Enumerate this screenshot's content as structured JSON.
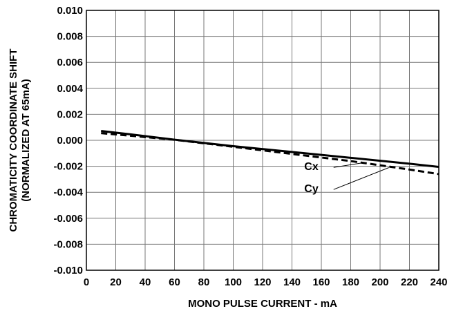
{
  "chart_data": {
    "type": "line",
    "title": "",
    "xlabel": "MONO PULSE CURRENT - mA",
    "ylabel_lines": [
      "CHROMATICITY COORDINATE SHIFT",
      "(NORMALIZED AT 65mA)"
    ],
    "xlim": [
      0,
      240
    ],
    "ylim": [
      -0.01,
      0.01
    ],
    "x_ticks": [
      0,
      20,
      40,
      60,
      80,
      100,
      120,
      140,
      160,
      180,
      200,
      220,
      240
    ],
    "x_tick_labels": [
      "0",
      "20",
      "40",
      "60",
      "80",
      "100",
      "120",
      "140",
      "160",
      "180",
      "200",
      "220",
      "240"
    ],
    "y_ticks": [
      0.01,
      0.008,
      0.006,
      0.004,
      0.002,
      0.0,
      -0.002,
      -0.004,
      -0.006,
      -0.008,
      -0.01
    ],
    "y_tick_labels": [
      "0.010",
      "0.008",
      "0.006",
      "0.004",
      "0.002",
      "0.000",
      "-0.002",
      "-0.004",
      "-0.006",
      "-0.008",
      "-0.010"
    ],
    "grid": true,
    "series": [
      {
        "name": "Cx",
        "style": "solid",
        "color": "#000000",
        "x": [
          10,
          30,
          60,
          100,
          140,
          180,
          220,
          240
        ],
        "y": [
          0.00072,
          0.00046,
          5e-05,
          -0.00045,
          -0.0009,
          -0.00135,
          -0.0018,
          -0.00205
        ],
        "label_anchor": [
          190,
          -0.0017
        ],
        "label_at": [
          158,
          -0.0023
        ]
      },
      {
        "name": "Cy",
        "style": "dashed",
        "color": "#000000",
        "x": [
          10,
          30,
          60,
          100,
          140,
          180,
          220,
          240
        ],
        "y": [
          0.00055,
          0.00035,
          4e-05,
          -0.0005,
          -0.00105,
          -0.0016,
          -0.00225,
          -0.0026
        ],
        "label_anchor": [
          206,
          -0.0021
        ],
        "label_at": [
          158,
          -0.004
        ]
      }
    ]
  }
}
